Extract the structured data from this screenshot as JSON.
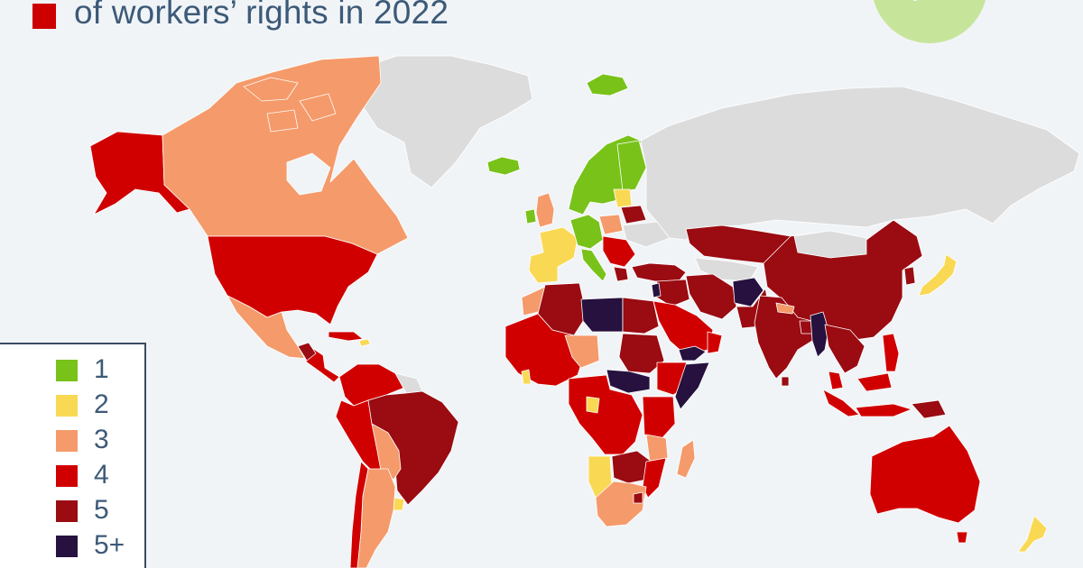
{
  "title": {
    "line2": "of workers’ rights in 2022",
    "accent_color": "#cc0000"
  },
  "badge": {
    "icon": "check-icon",
    "color": "#c6e59b",
    "check_color": "#ffffff"
  },
  "colors": {
    "background": "#f1f4f7",
    "no_data": "#dcdcdc",
    "text": "#3c5a78"
  },
  "legend": {
    "items": [
      {
        "label": "1",
        "color": "#78c21a"
      },
      {
        "label": "2",
        "color": "#f9d954"
      },
      {
        "label": "3",
        "color": "#f59a6a"
      },
      {
        "label": "4",
        "color": "#d10000"
      },
      {
        "label": "5",
        "color": "#9a0b12"
      },
      {
        "label": "5+",
        "color": "#26113f"
      }
    ]
  }
}
